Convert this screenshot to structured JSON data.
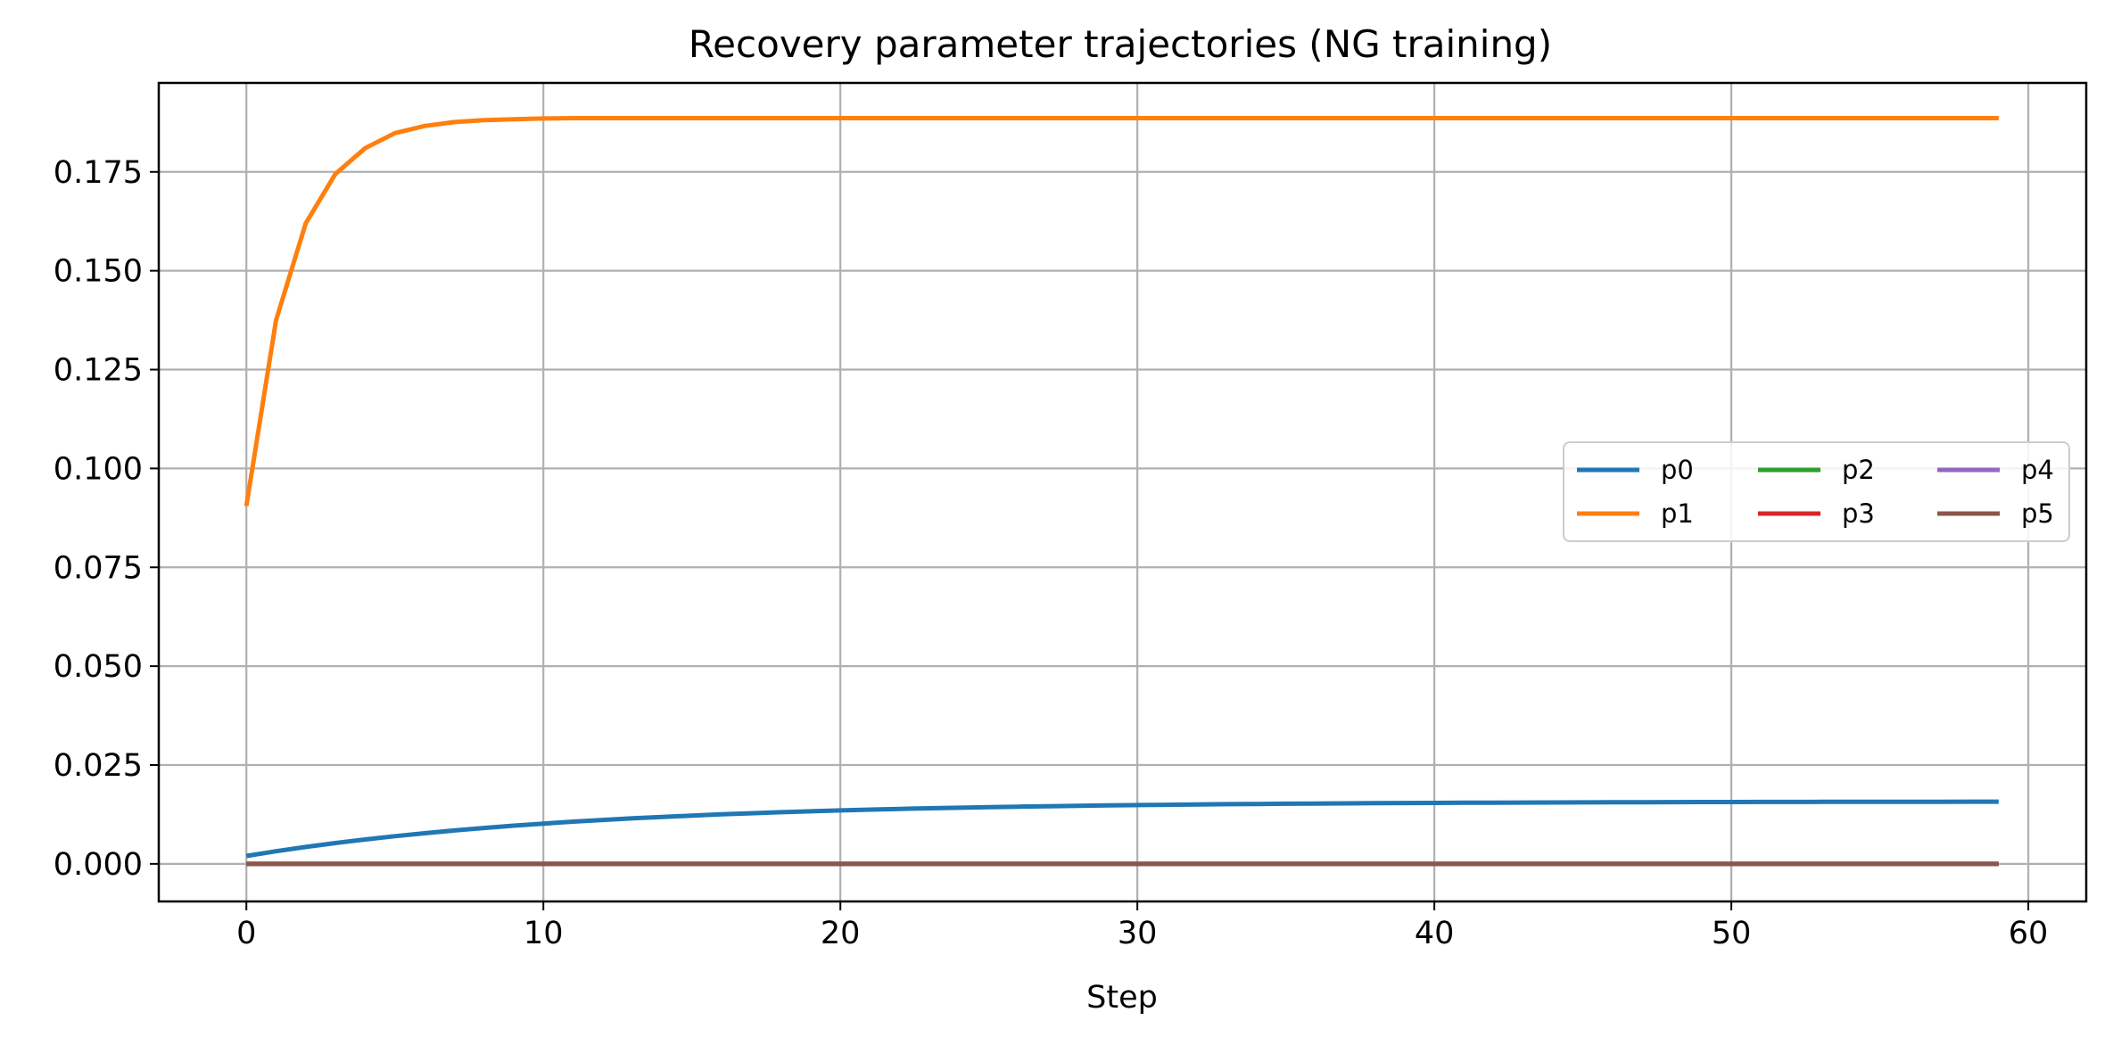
{
  "chart_data": {
    "type": "line",
    "title": "Recovery parameter trajectories (NG training)",
    "xlabel": "Step",
    "ylabel": "",
    "xlim": [
      -2.95,
      61.95
    ],
    "ylim": [
      -0.0095,
      0.1975
    ],
    "xticks": [
      0,
      10,
      20,
      30,
      40,
      50,
      60
    ],
    "xtick_labels": [
      "0",
      "10",
      "20",
      "30",
      "40",
      "50",
      "60"
    ],
    "yticks": [
      0.0,
      0.025,
      0.05,
      0.075,
      0.1,
      0.125,
      0.15,
      0.175
    ],
    "ytick_labels": [
      "0.000",
      "0.025",
      "0.050",
      "0.075",
      "0.100",
      "0.125",
      "0.150",
      "0.175"
    ],
    "grid": true,
    "legend_position": "center-right",
    "legend_columns": 3,
    "series": [
      {
        "name": "p0",
        "color": "#1f77b4",
        "kind": "exp",
        "start": 0.002,
        "end": 0.0158,
        "rate": 0.09
      },
      {
        "name": "p1",
        "color": "#ff7f0e",
        "kind": "points",
        "values": [
          0.0905,
          0.1375,
          0.162,
          0.1745,
          0.181,
          0.1848,
          0.1866,
          0.1876,
          0.1881,
          0.1883,
          0.1885,
          0.1886,
          0.1886
        ],
        "last": 0.1886
      },
      {
        "name": "p2",
        "color": "#2ca02c",
        "kind": "const",
        "value": 0.0
      },
      {
        "name": "p3",
        "color": "#d62728",
        "kind": "const",
        "value": 0.0
      },
      {
        "name": "p4",
        "color": "#9467bd",
        "kind": "const",
        "value": 0.0
      },
      {
        "name": "p5",
        "color": "#8c564b",
        "kind": "const",
        "value": 0.0
      }
    ],
    "x_start": 0,
    "x_end": 59
  }
}
